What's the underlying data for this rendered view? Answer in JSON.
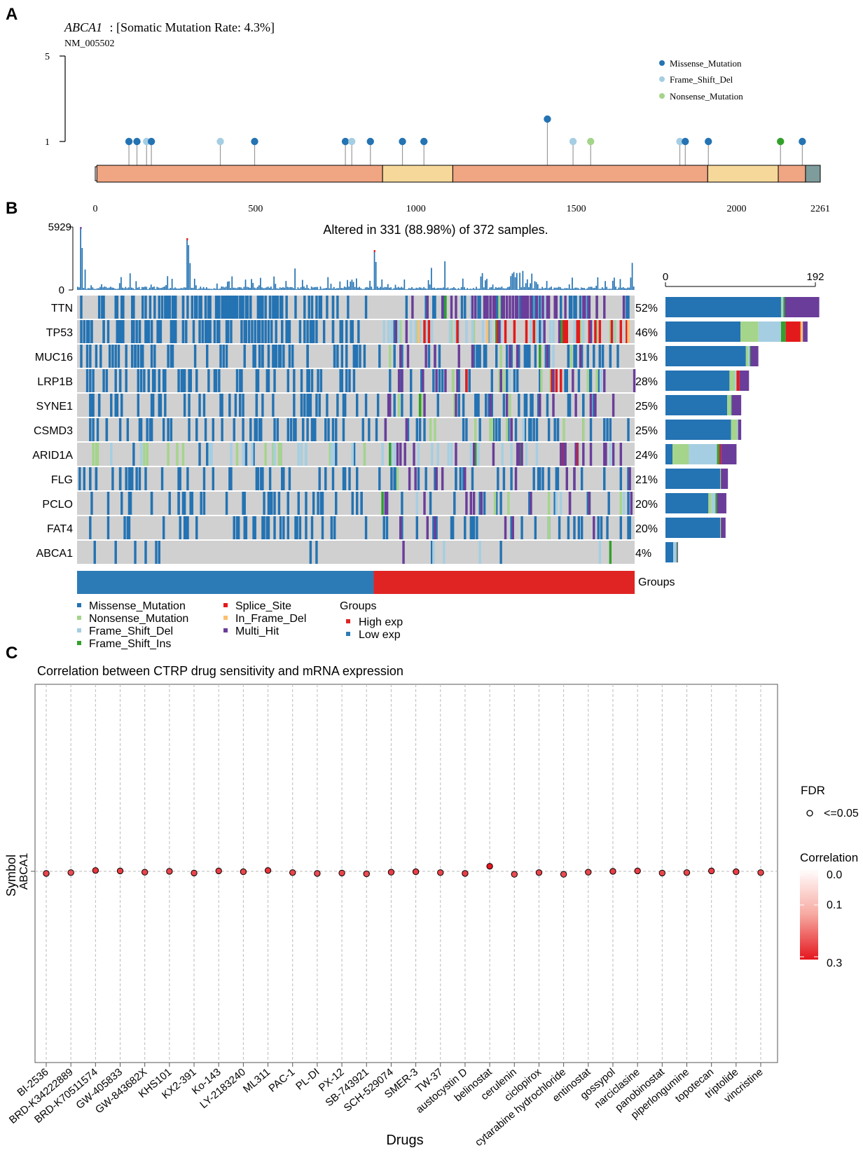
{
  "panel_labels": [
    "A",
    "B",
    "C"
  ],
  "colors": {
    "missense": "#2473b3",
    "nonsense": "#a5d48b",
    "frame_del": "#a5cee2",
    "frame_ins": "#33a02c",
    "splice": "#e31a1c",
    "inframe_del": "#fdbf6f",
    "multi_hit": "#6a3d9a",
    "high_exp": "#e02424",
    "low_exp": "#2d7bb6",
    "domain_a": "#f0a583",
    "domain_b": "#f5d89a",
    "tail": "#7f9c9c",
    "grey": "#d0d0d0"
  },
  "chart_data": [
    {
      "type": "lollipop",
      "panel": "A",
      "gene": "ABCA1",
      "title_rest": ": [Somatic Mutation Rate: 4.3%]",
      "transcript": "NM_005502",
      "protein_length": 2261,
      "y_ticks": [
        "5",
        "1"
      ],
      "x_ticks": [
        0,
        500,
        1000,
        1500,
        2000,
        2261
      ],
      "x_tick_labels": [
        "0",
        "500",
        "1000",
        "1500",
        "2000",
        "2261"
      ],
      "legend": [
        "Missense_Mutation",
        "Frame_Shift_Del",
        "Nonsense_Mutation"
      ],
      "domains": [
        {
          "start": 5,
          "end": 896,
          "kind": "a"
        },
        {
          "start": 896,
          "end": 1115,
          "kind": "b"
        },
        {
          "start": 1115,
          "end": 1910,
          "kind": "a"
        },
        {
          "start": 1910,
          "end": 2130,
          "kind": "b"
        },
        {
          "start": 2130,
          "end": 2215,
          "kind": "a"
        },
        {
          "start": 2215,
          "end": 2261,
          "kind": "tail"
        }
      ],
      "mutations": [
        {
          "pos": 105,
          "count": 1,
          "type": "missense"
        },
        {
          "pos": 130,
          "count": 1,
          "type": "missense"
        },
        {
          "pos": 160,
          "count": 1,
          "type": "frame_del"
        },
        {
          "pos": 175,
          "count": 1,
          "type": "missense"
        },
        {
          "pos": 390,
          "count": 1,
          "type": "frame_del"
        },
        {
          "pos": 497,
          "count": 1,
          "type": "missense"
        },
        {
          "pos": 780,
          "count": 1,
          "type": "missense"
        },
        {
          "pos": 800,
          "count": 1,
          "type": "frame_del"
        },
        {
          "pos": 858,
          "count": 1,
          "type": "missense"
        },
        {
          "pos": 958,
          "count": 1,
          "type": "missense"
        },
        {
          "pos": 1025,
          "count": 1,
          "type": "missense"
        },
        {
          "pos": 1410,
          "count": 2,
          "type": "missense"
        },
        {
          "pos": 1490,
          "count": 1,
          "type": "frame_del"
        },
        {
          "pos": 1545,
          "count": 1,
          "type": "nonsense"
        },
        {
          "pos": 1823,
          "count": 1,
          "type": "frame_del"
        },
        {
          "pos": 1840,
          "count": 1,
          "type": "missense"
        },
        {
          "pos": 1912,
          "count": 1,
          "type": "missense"
        },
        {
          "pos": 2137,
          "count": 1,
          "type": "frame_ins"
        },
        {
          "pos": 2205,
          "count": 1,
          "type": "missense"
        }
      ]
    },
    {
      "type": "oncoplot",
      "panel": "B",
      "title": "Altered in 331 (88.98%) of 372 samples.",
      "tmb_axis": {
        "max_label": "5929",
        "min_label": "0"
      },
      "bar_axis": {
        "min_label": "0",
        "max_label": "192",
        "max": 192
      },
      "genes": [
        {
          "name": "TTN",
          "pct": "52%",
          "counts": {
            "missense": 148,
            "nonsense": 1,
            "frame_del": 2,
            "frame_ins": 2,
            "splice": 0,
            "inframe_del": 0,
            "multi_hit": 44
          }
        },
        {
          "name": "TP53",
          "pct": "46%",
          "counts": {
            "missense": 96,
            "nonsense": 23,
            "frame_del": 29,
            "frame_ins": 6,
            "splice": 19,
            "inframe_del": 3,
            "multi_hit": 6
          }
        },
        {
          "name": "MUC16",
          "pct": "31%",
          "counts": {
            "missense": 103,
            "nonsense": 3,
            "frame_del": 2,
            "frame_ins": 1,
            "splice": 0,
            "inframe_del": 0,
            "multi_hit": 10
          }
        },
        {
          "name": "LRP1B",
          "pct": "28%",
          "counts": {
            "missense": 82,
            "nonsense": 7,
            "frame_del": 2,
            "frame_ins": 0,
            "splice": 4,
            "inframe_del": 0,
            "multi_hit": 12
          }
        },
        {
          "name": "SYNE1",
          "pct": "25%",
          "counts": {
            "missense": 79,
            "nonsense": 4,
            "frame_del": 1,
            "frame_ins": 1,
            "splice": 0,
            "inframe_del": 0,
            "multi_hit": 12
          }
        },
        {
          "name": "CSMD3",
          "pct": "25%",
          "counts": {
            "missense": 84,
            "nonsense": 8,
            "frame_del": 1,
            "frame_ins": 0,
            "splice": 0,
            "inframe_del": 0,
            "multi_hit": 4
          }
        },
        {
          "name": "ARID1A",
          "pct": "24%",
          "counts": {
            "missense": 9,
            "nonsense": 21,
            "frame_del": 36,
            "frame_ins": 3,
            "splice": 2,
            "inframe_del": 0,
            "multi_hit": 20
          }
        },
        {
          "name": "FLG",
          "pct": "21%",
          "counts": {
            "missense": 70,
            "nonsense": 1,
            "frame_del": 0,
            "frame_ins": 0,
            "splice": 0,
            "inframe_del": 0,
            "multi_hit": 9
          }
        },
        {
          "name": "PCLO",
          "pct": "20%",
          "counts": {
            "missense": 55,
            "nonsense": 4,
            "frame_del": 5,
            "frame_ins": 2,
            "splice": 0,
            "inframe_del": 0,
            "multi_hit": 12
          }
        },
        {
          "name": "FAT4",
          "pct": "20%",
          "counts": {
            "missense": 70,
            "nonsense": 1,
            "frame_del": 0,
            "frame_ins": 0,
            "splice": 0,
            "inframe_del": 0,
            "multi_hit": 6
          }
        },
        {
          "name": "ABCA1",
          "pct": "4%",
          "counts": {
            "missense": 10,
            "nonsense": 0,
            "frame_del": 4,
            "frame_ins": 1,
            "splice": 0,
            "inframe_del": 0,
            "multi_hit": 1
          }
        }
      ],
      "groups_label": "Groups",
      "group_split_fraction": 0.532,
      "legend_mutations": [
        "Missense_Mutation",
        "Nonsense_Mutation",
        "Frame_Shift_Del",
        "Frame_Shift_Ins",
        "Splice_Site",
        "In_Frame_Del",
        "Multi_Hit"
      ],
      "legend_groups_title": "Groups",
      "legend_groups": [
        "High exp",
        "Low exp"
      ]
    },
    {
      "type": "scatter",
      "panel": "C",
      "title": "Correlation between CTRP drug sensitivity and mRNA expression",
      "xlabel": "Drugs",
      "ylabel": "Symbol",
      "y_category": "ABCA1",
      "legend_fdr_title": "FDR",
      "legend_fdr_label": "<=0.05",
      "legend_corr_title": "Correlation",
      "legend_corr_ticks": [
        "0.0",
        "0.1",
        "0.3"
      ],
      "drugs": [
        "BI-2536",
        "BRD-K34222889",
        "BRD-K70511574",
        "GW-405833",
        "GW-843682X",
        "KHS101",
        "KX2-391",
        "Ko-143",
        "LY-2183240",
        "ML311",
        "PAC-1",
        "PL-DI",
        "PX-12",
        "SB-743921",
        "SCH-529074",
        "SMER-3",
        "TW-37",
        "austocystin D",
        "belinostat",
        "cerulenin",
        "ciclopirox",
        "cytarabine hydrochloride",
        "entinostat",
        "gossypol",
        "narciclasine",
        "panobinostat",
        "piperlongumine",
        "topotecan",
        "triptolide",
        "vincristine"
      ],
      "offsets": [
        -0.05,
        -0.03,
        0.02,
        0.01,
        -0.02,
        0.0,
        -0.04,
        0.01,
        -0.01,
        0.02,
        -0.03,
        -0.05,
        -0.04,
        -0.06,
        -0.02,
        -0.01,
        -0.03,
        -0.05,
        0.12,
        -0.07,
        -0.03,
        -0.07,
        -0.02,
        0.0,
        0.01,
        -0.04,
        -0.03,
        0.01,
        -0.01,
        -0.03
      ],
      "correlations": [
        0.24,
        0.23,
        0.26,
        0.25,
        0.24,
        0.24,
        0.24,
        0.25,
        0.24,
        0.26,
        0.24,
        0.23,
        0.24,
        0.23,
        0.25,
        0.25,
        0.24,
        0.25,
        0.3,
        0.23,
        0.24,
        0.23,
        0.24,
        0.25,
        0.25,
        0.24,
        0.24,
        0.25,
        0.25,
        0.24
      ]
    }
  ]
}
